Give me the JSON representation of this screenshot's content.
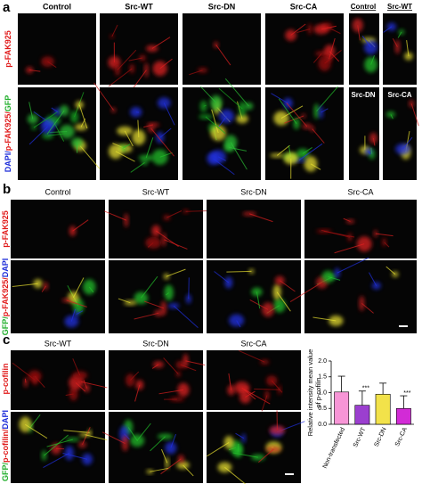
{
  "panels": {
    "a": {
      "label": "a",
      "columns": [
        "Control",
        "Src-WT",
        "Src-DN",
        "Src-CA"
      ],
      "inset_columns": [
        "Control",
        "Src-WT"
      ],
      "inset_sublabels": [
        "Src-DN",
        "Src-CA"
      ],
      "rows": [
        [
          "p-FAK925"
        ],
        [
          "DAPI/",
          "p-FAK925/",
          "GFP"
        ]
      ]
    },
    "b": {
      "label": "b",
      "columns": [
        "Control",
        "Src-WT",
        "Src-DN",
        "Src-CA"
      ],
      "rows": [
        [
          "p-FAK925"
        ],
        [
          "GFP/",
          "p-FAK925/",
          "DAPI"
        ]
      ]
    },
    "c": {
      "label": "c",
      "columns": [
        "Src-WT",
        "Src-DN",
        "Src-CA"
      ],
      "rows": [
        [
          "p-cofilin"
        ],
        [
          "GFP/",
          "p-cofilin/",
          "DAPI"
        ]
      ]
    }
  },
  "chart_data": {
    "type": "bar",
    "y_label": [
      "Relative intensity mean value",
      "of p-cofilin"
    ],
    "categories": [
      "Non-transfected",
      "Src-WT",
      "Src-DN",
      "Src-CA"
    ],
    "values": [
      1.02,
      0.6,
      0.95,
      0.5
    ],
    "errors": [
      0.5,
      0.45,
      0.35,
      0.4
    ],
    "colors": [
      "#f795d6",
      "#9b3fcf",
      "#f2e24a",
      "#d22bd6"
    ],
    "significance": {
      "Src-WT": "***",
      "Src-CA": "***"
    },
    "ylim": [
      0,
      2
    ],
    "yticks": [
      {
        "value": 0,
        "label": "0.0"
      },
      0.5,
      {
        "value": 1,
        "label": "1.0"
      },
      1.5,
      {
        "value": 2,
        "label": "2.0"
      }
    ]
  }
}
